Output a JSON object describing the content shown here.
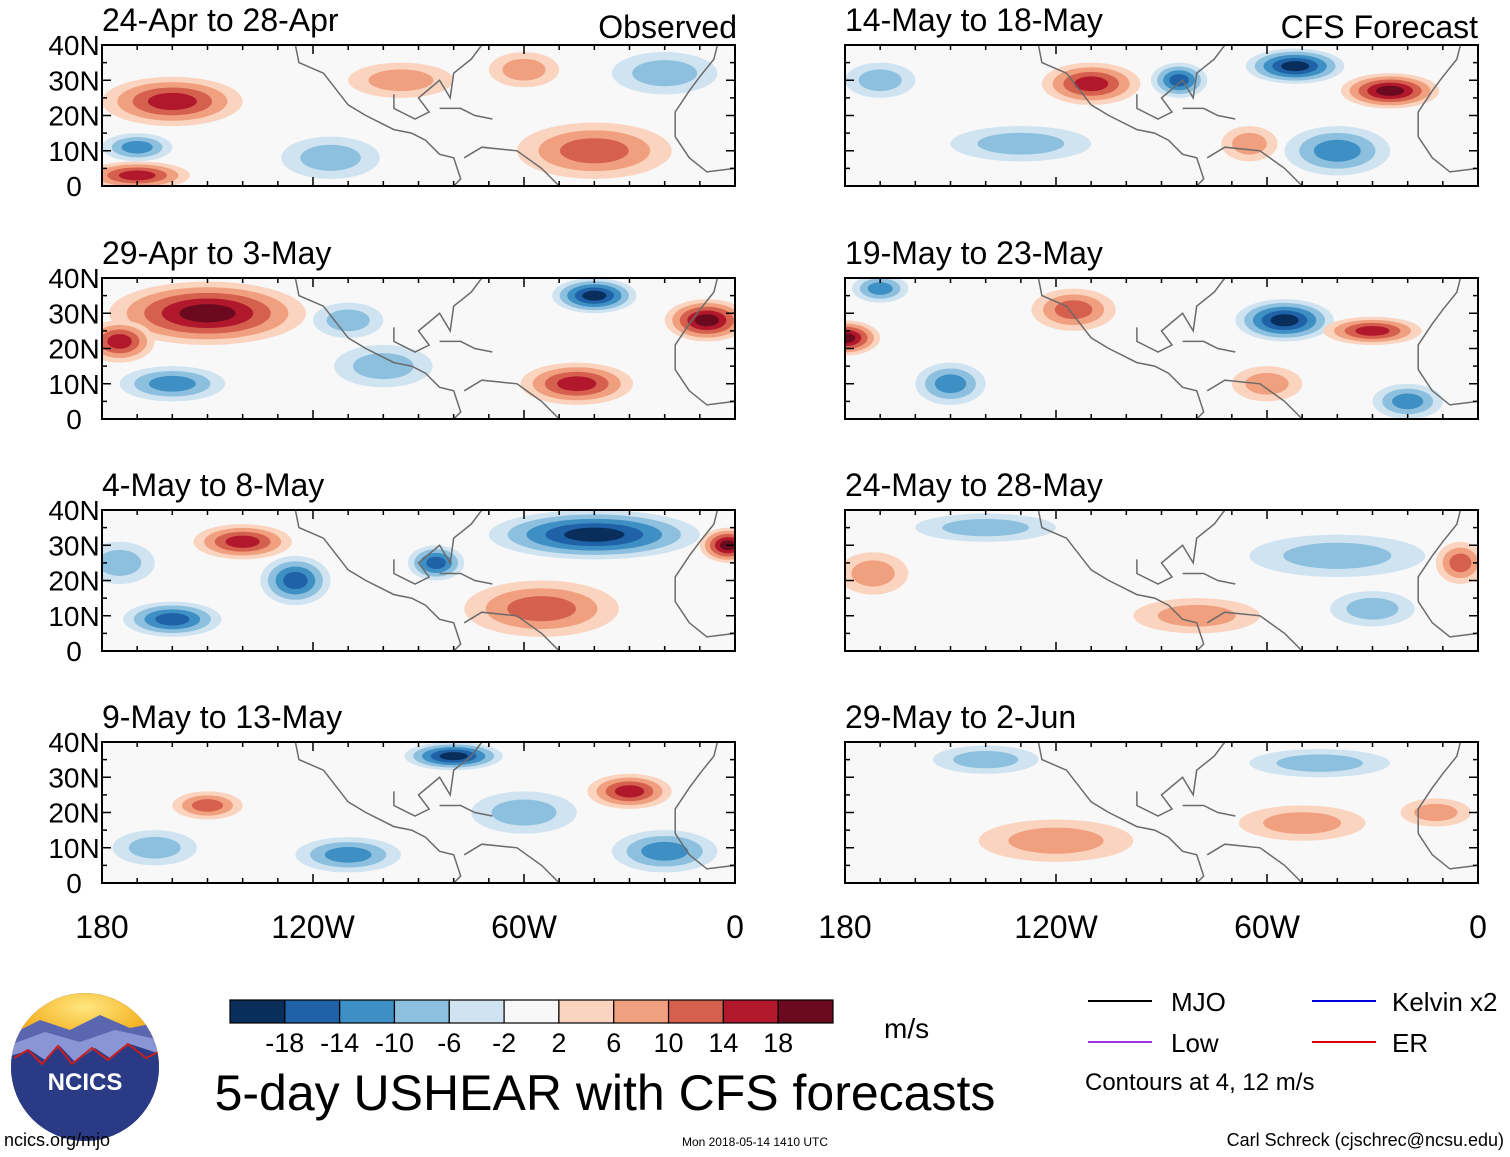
{
  "chart_data": {
    "type": "heatmap",
    "title": "5-day USHEAR with CFS forecasts",
    "units": "m/s",
    "left_column_label": "Observed",
    "right_column_label": "CFS Forecast",
    "x_ticks": [
      "180",
      "120W",
      "60W",
      "0"
    ],
    "y_ticks": [
      "40N",
      "30N",
      "20N",
      "10N",
      "0"
    ],
    "xlim": [
      -180,
      0
    ],
    "ylim": [
      0,
      40
    ],
    "colorbar": {
      "labels": [
        "-18",
        "-14",
        "-10",
        "-6",
        "-2",
        "2",
        "6",
        "10",
        "14",
        "18"
      ],
      "levels": [
        -18,
        -14,
        -10,
        -6,
        -2,
        2,
        6,
        10,
        14,
        18
      ],
      "colors": [
        "#0a2e5c",
        "#1f62a8",
        "#3d8fc4",
        "#8cc0de",
        "#cfe3f0",
        "#f8f8f8",
        "#fbd4c0",
        "#f0a07e",
        "#d6604e",
        "#b2182b",
        "#6b0a1e"
      ]
    },
    "legend": {
      "items": [
        {
          "label": "MJO",
          "color": "#000000"
        },
        {
          "label": "Kelvin x2",
          "color": "#0000dd"
        },
        {
          "label": "Low",
          "color": "#a030e8"
        },
        {
          "label": "ER",
          "color": "#e00000"
        }
      ],
      "note": "Contours at 4, 12 m/s"
    },
    "panels": [
      {
        "period": "24-Apr to 28-Apr",
        "column": "Observed",
        "blobs": [
          {
            "x": -160,
            "y": 24,
            "rx": 20,
            "ry": 7,
            "v": 14
          },
          {
            "x": -115,
            "y": 8,
            "rx": 14,
            "ry": 6,
            "v": -6
          },
          {
            "x": -40,
            "y": 10,
            "rx": 22,
            "ry": 8,
            "v": 10
          },
          {
            "x": -170,
            "y": 3,
            "rx": 15,
            "ry": 4,
            "v": 14
          },
          {
            "x": -170,
            "y": 11,
            "rx": 10,
            "ry": 4,
            "v": -10
          },
          {
            "x": -60,
            "y": 33,
            "rx": 10,
            "ry": 5,
            "v": 6
          },
          {
            "x": -20,
            "y": 32,
            "rx": 15,
            "ry": 6,
            "v": -6
          },
          {
            "x": -95,
            "y": 30,
            "rx": 15,
            "ry": 5,
            "v": 6
          }
        ]
      },
      {
        "period": "29-Apr to 3-May",
        "column": "Observed",
        "blobs": [
          {
            "x": -150,
            "y": 30,
            "rx": 28,
            "ry": 9,
            "v": 18
          },
          {
            "x": -175,
            "y": 22,
            "rx": 10,
            "ry": 6,
            "v": 14
          },
          {
            "x": -40,
            "y": 35,
            "rx": 12,
            "ry": 5,
            "v": -18
          },
          {
            "x": -8,
            "y": 28,
            "rx": 12,
            "ry": 6,
            "v": 18
          },
          {
            "x": -45,
            "y": 10,
            "rx": 16,
            "ry": 6,
            "v": 14
          },
          {
            "x": -160,
            "y": 10,
            "rx": 15,
            "ry": 5,
            "v": -10
          },
          {
            "x": -100,
            "y": 15,
            "rx": 14,
            "ry": 6,
            "v": -6
          },
          {
            "x": -110,
            "y": 28,
            "rx": 10,
            "ry": 5,
            "v": -6
          }
        ]
      },
      {
        "period": "4-May to 8-May",
        "column": "Observed",
        "blobs": [
          {
            "x": -140,
            "y": 31,
            "rx": 14,
            "ry": 5,
            "v": 14
          },
          {
            "x": -40,
            "y": 33,
            "rx": 30,
            "ry": 7,
            "v": -18
          },
          {
            "x": -2,
            "y": 30,
            "rx": 8,
            "ry": 5,
            "v": 18
          },
          {
            "x": -55,
            "y": 12,
            "rx": 22,
            "ry": 8,
            "v": 10
          },
          {
            "x": -160,
            "y": 9,
            "rx": 14,
            "ry": 5,
            "v": -14
          },
          {
            "x": -125,
            "y": 20,
            "rx": 10,
            "ry": 7,
            "v": -14
          },
          {
            "x": -85,
            "y": 25,
            "rx": 8,
            "ry": 5,
            "v": -14
          },
          {
            "x": -175,
            "y": 25,
            "rx": 10,
            "ry": 6,
            "v": -6
          }
        ]
      },
      {
        "period": "9-May to 13-May",
        "column": "Observed",
        "blobs": [
          {
            "x": -80,
            "y": 36,
            "rx": 14,
            "ry": 4,
            "v": -18
          },
          {
            "x": -30,
            "y": 26,
            "rx": 12,
            "ry": 5,
            "v": 14
          },
          {
            "x": -150,
            "y": 22,
            "rx": 10,
            "ry": 4,
            "v": 10
          },
          {
            "x": -20,
            "y": 9,
            "rx": 15,
            "ry": 6,
            "v": -10
          },
          {
            "x": -110,
            "y": 8,
            "rx": 15,
            "ry": 5,
            "v": -10
          },
          {
            "x": -60,
            "y": 20,
            "rx": 15,
            "ry": 6,
            "v": -6
          },
          {
            "x": -165,
            "y": 10,
            "rx": 12,
            "ry": 5,
            "v": -6
          }
        ]
      },
      {
        "period": "14-May to 18-May",
        "column": "CFS Forecast",
        "blobs": [
          {
            "x": -110,
            "y": 29,
            "rx": 14,
            "ry": 6,
            "v": 14
          },
          {
            "x": -25,
            "y": 27,
            "rx": 14,
            "ry": 5,
            "v": 18
          },
          {
            "x": -52,
            "y": 34,
            "rx": 14,
            "ry": 5,
            "v": -18
          },
          {
            "x": -85,
            "y": 30,
            "rx": 8,
            "ry": 5,
            "v": -14
          },
          {
            "x": -130,
            "y": 12,
            "rx": 20,
            "ry": 5,
            "v": -6
          },
          {
            "x": -40,
            "y": 10,
            "rx": 15,
            "ry": 7,
            "v": -10
          },
          {
            "x": -170,
            "y": 30,
            "rx": 10,
            "ry": 5,
            "v": -6
          },
          {
            "x": -65,
            "y": 12,
            "rx": 8,
            "ry": 5,
            "v": 6
          }
        ]
      },
      {
        "period": "19-May to 23-May",
        "column": "CFS Forecast",
        "blobs": [
          {
            "x": -180,
            "y": 23,
            "rx": 10,
            "ry": 5,
            "v": 18
          },
          {
            "x": -115,
            "y": 31,
            "rx": 12,
            "ry": 6,
            "v": 10
          },
          {
            "x": -55,
            "y": 28,
            "rx": 14,
            "ry": 6,
            "v": -18
          },
          {
            "x": -30,
            "y": 25,
            "rx": 14,
            "ry": 4,
            "v": 14
          },
          {
            "x": -150,
            "y": 10,
            "rx": 10,
            "ry": 6,
            "v": -10
          },
          {
            "x": -60,
            "y": 10,
            "rx": 10,
            "ry": 5,
            "v": 6
          },
          {
            "x": -170,
            "y": 37,
            "rx": 8,
            "ry": 4,
            "v": -10
          },
          {
            "x": -20,
            "y": 5,
            "rx": 10,
            "ry": 5,
            "v": -10
          }
        ]
      },
      {
        "period": "24-May to 28-May",
        "column": "CFS Forecast",
        "blobs": [
          {
            "x": -172,
            "y": 22,
            "rx": 10,
            "ry": 6,
            "v": 6
          },
          {
            "x": -40,
            "y": 27,
            "rx": 25,
            "ry": 6,
            "v": -6
          },
          {
            "x": -5,
            "y": 25,
            "rx": 7,
            "ry": 6,
            "v": 10
          },
          {
            "x": -80,
            "y": 10,
            "rx": 18,
            "ry": 5,
            "v": 6
          },
          {
            "x": -140,
            "y": 35,
            "rx": 20,
            "ry": 4,
            "v": -6
          },
          {
            "x": -30,
            "y": 12,
            "rx": 12,
            "ry": 5,
            "v": -6
          }
        ]
      },
      {
        "period": "29-May to 2-Jun",
        "column": "CFS Forecast",
        "blobs": [
          {
            "x": -50,
            "y": 17,
            "rx": 18,
            "ry": 5,
            "v": 6
          },
          {
            "x": -120,
            "y": 12,
            "rx": 22,
            "ry": 6,
            "v": 6
          },
          {
            "x": -140,
            "y": 35,
            "rx": 15,
            "ry": 4,
            "v": -6
          },
          {
            "x": -45,
            "y": 34,
            "rx": 20,
            "ry": 4,
            "v": -6
          },
          {
            "x": -12,
            "y": 20,
            "rx": 10,
            "ry": 4,
            "v": 6
          }
        ]
      }
    ]
  },
  "footer": {
    "logo_text": "NCICS",
    "site": "ncics.org/mjo",
    "timestamp": "Mon 2018-05-14 1410 UTC",
    "author": "Carl Schreck (cjschrec@ncsu.edu)"
  }
}
